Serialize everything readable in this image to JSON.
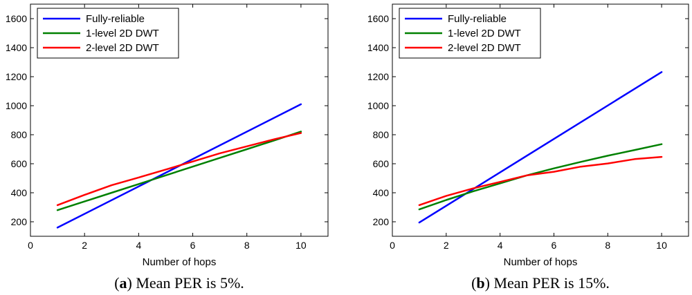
{
  "chart_data": [
    {
      "type": "line",
      "caption_letter": "a",
      "caption_text": " Mean PER is 5%.",
      "xlabel": "Number of hops",
      "ylabel": "",
      "xlim": [
        0,
        11
      ],
      "ylim": [
        100,
        1700
      ],
      "xticks": [
        0,
        2,
        4,
        6,
        8,
        10
      ],
      "yticks": [
        200,
        400,
        600,
        800,
        1000,
        1200,
        1400,
        1600
      ],
      "legend_position": "top-left",
      "series": [
        {
          "name": "Fully-reliable",
          "color": "#0000ff",
          "x": [
            1,
            10
          ],
          "values": [
            160,
            1010
          ]
        },
        {
          "name": "1-level 2D DWT",
          "color": "#008000",
          "x": [
            1,
            2,
            3,
            4,
            5,
            6,
            7,
            8,
            9,
            10
          ],
          "values": [
            280,
            340,
            400,
            460,
            520,
            580,
            640,
            700,
            760,
            822
          ]
        },
        {
          "name": "2-level 2D DWT",
          "color": "#ff0000",
          "x": [
            1,
            2,
            3,
            4,
            5,
            6,
            7,
            8,
            9,
            10
          ],
          "values": [
            315,
            385,
            452,
            505,
            560,
            615,
            672,
            720,
            768,
            812
          ]
        }
      ]
    },
    {
      "type": "line",
      "caption_letter": "b",
      "caption_text": " Mean PER is 15%.",
      "xlabel": "Number of hops",
      "ylabel": "",
      "xlim": [
        0,
        11
      ],
      "ylim": [
        100,
        1700
      ],
      "xticks": [
        0,
        2,
        4,
        6,
        8,
        10
      ],
      "yticks": [
        200,
        400,
        600,
        800,
        1000,
        1200,
        1400,
        1600
      ],
      "legend_position": "top-left",
      "series": [
        {
          "name": "Fully-reliable",
          "color": "#0000ff",
          "x": [
            1,
            10
          ],
          "values": [
            195,
            1232
          ]
        },
        {
          "name": "1-level 2D DWT",
          "color": "#008000",
          "x": [
            1,
            2,
            3,
            4,
            5,
            6,
            7,
            8,
            9,
            10
          ],
          "values": [
            285,
            350,
            410,
            465,
            520,
            568,
            613,
            655,
            695,
            735
          ]
        },
        {
          "name": "2-level 2D DWT",
          "color": "#ff0000",
          "x": [
            1,
            2,
            3,
            4,
            5,
            6,
            7,
            8,
            9,
            10
          ],
          "values": [
            315,
            378,
            430,
            475,
            520,
            545,
            580,
            602,
            632,
            647
          ]
        }
      ]
    }
  ]
}
